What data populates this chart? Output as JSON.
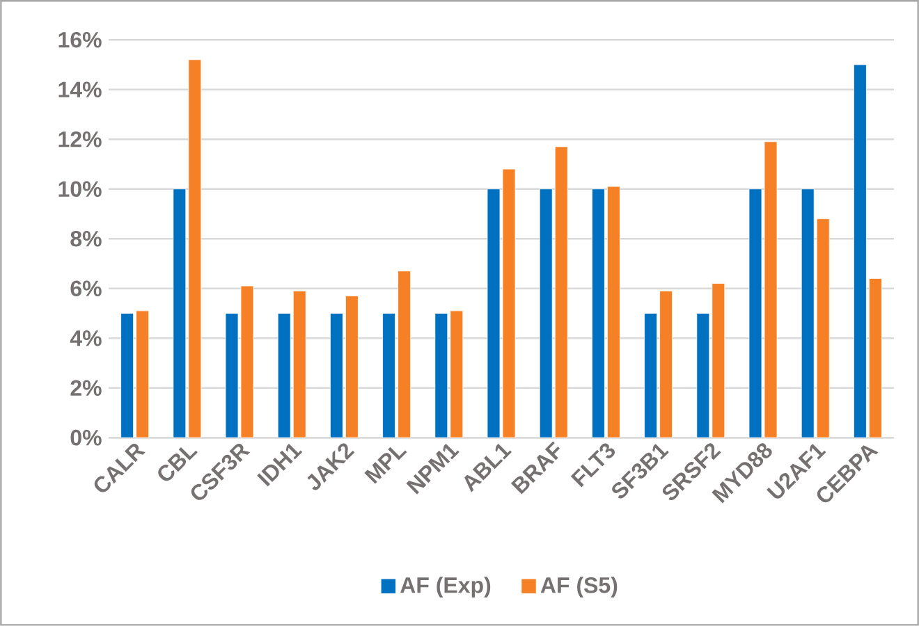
{
  "chart_data": {
    "type": "bar",
    "categories": [
      "CALR",
      "CBL",
      "CSF3R",
      "IDH1",
      "JAK2",
      "MPL",
      "NPM1",
      "ABL1",
      "BRAF",
      "FLT3",
      "SF3B1",
      "SRSF2",
      "MYD88",
      "U2AF1",
      "CEBPA"
    ],
    "series": [
      {
        "name": "AF (Exp)",
        "color": "#0070c0",
        "values": [
          5,
          10,
          5,
          5,
          5,
          5,
          5,
          10,
          10,
          10,
          5,
          5,
          10,
          10,
          15
        ]
      },
      {
        "name": "AF (S5)",
        "color": "#f58025",
        "values": [
          5.1,
          15.2,
          6.1,
          5.9,
          5.7,
          6.7,
          5.1,
          10.8,
          11.7,
          10.1,
          5.9,
          6.2,
          11.9,
          8.8,
          6.4
        ]
      }
    ],
    "ylim": [
      0,
      16
    ],
    "yticks": [
      {
        "value": 0,
        "label": "0%"
      },
      {
        "value": 2,
        "label": "2%"
      },
      {
        "value": 4,
        "label": "4%"
      },
      {
        "value": 6,
        "label": "6%"
      },
      {
        "value": 8,
        "label": "8%"
      },
      {
        "value": 10,
        "label": "10%"
      },
      {
        "value": 12,
        "label": "12%"
      },
      {
        "value": 14,
        "label": "14%"
      },
      {
        "value": 16,
        "label": "16%"
      }
    ],
    "grid": "y",
    "legend": "bottom"
  }
}
